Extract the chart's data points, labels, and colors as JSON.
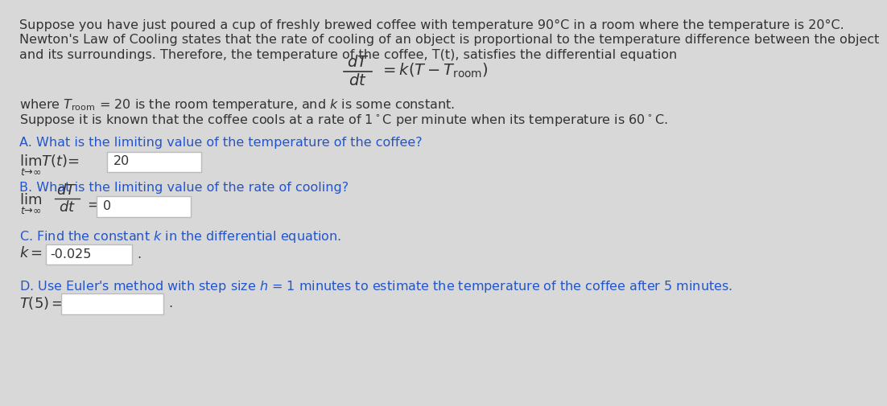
{
  "bg_outer": "#d8d8d8",
  "bg_inner": "#ebebeb",
  "text_color": "#333333",
  "blue_color": "#2255cc",
  "box_border_color": "#bbbbbb",
  "box_fill_color": "#ffffff",
  "para1_line1": "Suppose you have just poured a cup of freshly brewed coffee with temperature 90°C in a room where the temperature is 20°C.",
  "para1_line2": "Newton's Law of Cooling states that the rate of cooling of an object is proportional to the temperature difference between the object",
  "para1_line3": "and its surroundings. Therefore, the temperature of the coffee, T(t), satisfies the differential equation",
  "para2_line1": "where $T_{\\rm room}$ = 20 is the room temperature, and $k$ is some constant.",
  "para2_line2": "Suppose it is known that the coffee cools at a rate of 1$^{\\circ}$C per minute when its temperature is 60$^{\\circ}$C.",
  "qA_label": "A. What is the limiting value of the temperature of the coffee?",
  "qA_answer": "20",
  "qB_label": "B. What is the limiting value of the rate of cooling?",
  "qB_answer": "0",
  "qC_label": "C. Find the constant $k$ in the differential equation.",
  "qC_answer": "-0.025",
  "qD_label": "D. Use Euler's method with step size $h$ = 1 minutes to estimate the temperature of the coffee after 5 minutes.",
  "qD_answer": ""
}
